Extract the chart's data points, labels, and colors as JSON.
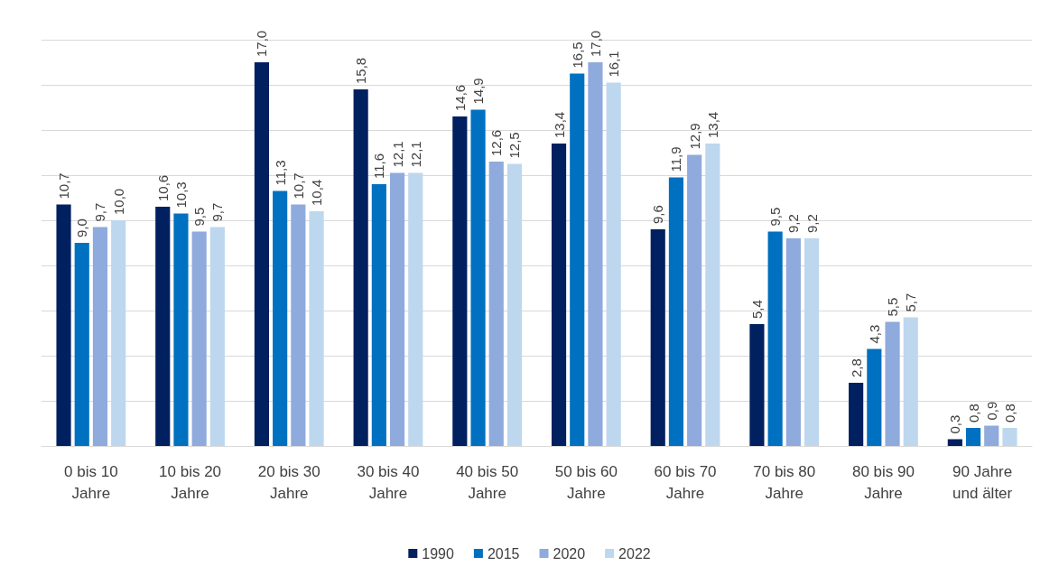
{
  "chart_data": {
    "type": "bar",
    "categories": [
      "0 bis 10\nJahre",
      "10 bis 20\nJahre",
      "20 bis 30\nJahre",
      "30 bis 40\nJahre",
      "40 bis 50\nJahre",
      "50 bis 60\nJahre",
      "60 bis 70\nJahre",
      "70 bis 80\nJahre",
      "80 bis 90\nJahre",
      "90 Jahre\nund älter"
    ],
    "series": [
      {
        "name": "1990",
        "color": "#002060",
        "values": [
          10.7,
          10.6,
          17.0,
          15.8,
          14.6,
          13.4,
          9.6,
          5.4,
          2.8,
          0.3
        ],
        "value_labels": [
          "10,7",
          "10,6",
          "17,0",
          "15,8",
          "14,6",
          "13,4",
          "9,6",
          "5,4",
          "2,8",
          "0,3"
        ]
      },
      {
        "name": "2015",
        "color": "#0070c0",
        "values": [
          9.0,
          10.3,
          11.3,
          11.6,
          14.9,
          16.5,
          11.9,
          9.5,
          4.3,
          0.8
        ],
        "value_labels": [
          "9,0",
          "10,3",
          "11,3",
          "11,6",
          "14,9",
          "16,5",
          "11,9",
          "9,5",
          "4,3",
          "0,8"
        ]
      },
      {
        "name": "2020",
        "color": "#8faadc",
        "values": [
          9.7,
          9.5,
          10.7,
          12.1,
          12.6,
          17.0,
          12.9,
          9.2,
          5.5,
          0.9
        ],
        "value_labels": [
          "9,7",
          "9,5",
          "10,7",
          "12,1",
          "12,6",
          "17,0",
          "12,9",
          "9,2",
          "5,5",
          "0,9"
        ]
      },
      {
        "name": "2022",
        "color": "#bdd7ee",
        "values": [
          10.0,
          9.7,
          10.4,
          12.1,
          12.5,
          16.1,
          13.4,
          9.2,
          5.7,
          0.8
        ],
        "value_labels": [
          "10,0",
          "9,7",
          "10,4",
          "12,1",
          "12,5",
          "16,1",
          "13,4",
          "9,2",
          "5,7",
          "0,8"
        ]
      }
    ],
    "ylim": [
      0,
      18
    ],
    "yticks": [
      {
        "value": 0,
        "label": null
      },
      {
        "value": 2,
        "label": null
      },
      {
        "value": 4,
        "label": null
      },
      {
        "value": 6,
        "label": null
      },
      {
        "value": 8,
        "label": null
      },
      {
        "value": 10,
        "label": null
      },
      {
        "value": 12,
        "label": null
      },
      {
        "value": 14,
        "label": null
      },
      {
        "value": 16,
        "label": null
      },
      {
        "value": 18,
        "label": null
      }
    ],
    "tick_labels": "x",
    "grid": "y",
    "legend": "bottom"
  }
}
